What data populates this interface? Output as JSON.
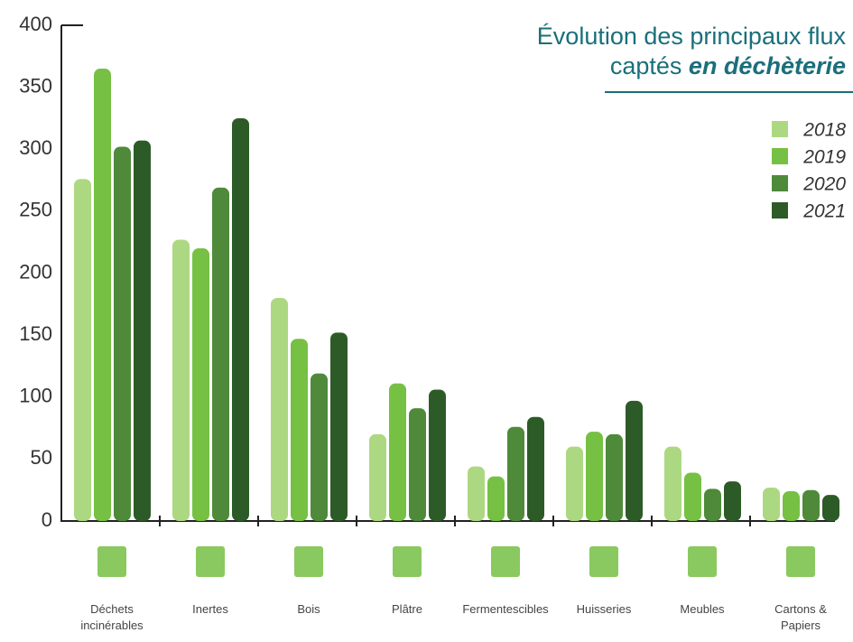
{
  "chart_data": {
    "type": "bar",
    "title_line1": "Évolution des principaux flux",
    "title_line2": "captés",
    "title_emphasis": "en déchèterie",
    "categories": [
      "Déchets incinérables",
      "Inertes",
      "Bois",
      "Plâtre",
      "Fermentescibles",
      "Huisseries",
      "Meubles",
      "Cartons & Papiers"
    ],
    "series": [
      {
        "name": "2018",
        "color": "#add882",
        "values": [
          276,
          227,
          180,
          70,
          44,
          60,
          60,
          27
        ]
      },
      {
        "name": "2019",
        "color": "#76c043",
        "values": [
          365,
          220,
          147,
          111,
          36,
          72,
          39,
          24
        ]
      },
      {
        "name": "2020",
        "color": "#4e8a3a",
        "values": [
          302,
          269,
          119,
          91,
          76,
          70,
          26,
          25
        ]
      },
      {
        "name": "2021",
        "color": "#2d5b27",
        "values": [
          307,
          325,
          152,
          106,
          84,
          97,
          32,
          21
        ]
      }
    ],
    "ylim": [
      0,
      400
    ],
    "yticks": [
      0,
      50,
      100,
      150,
      200,
      250,
      300,
      350,
      400
    ],
    "grid": false,
    "legend": "upper right"
  }
}
